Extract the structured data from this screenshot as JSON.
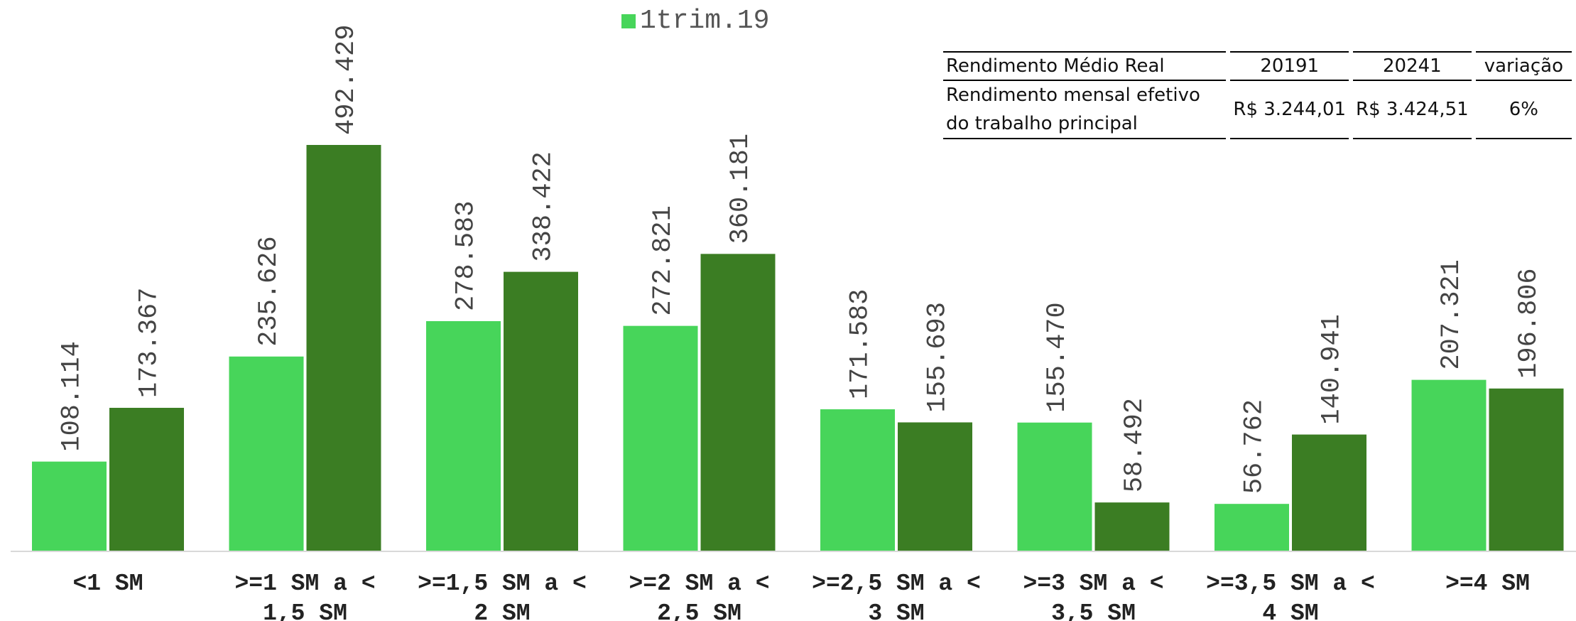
{
  "legend": {
    "label": "1trim.19"
  },
  "colors": {
    "series1": "#47d55a",
    "series2": "#3b7d23",
    "axis": "#d9d9d9",
    "label": "#444444"
  },
  "info_table": {
    "headers": [
      "Rendimento Médio Real",
      "20191",
      "20241",
      "variação"
    ],
    "row": {
      "metric": "Rendimento mensal efetivo do trabalho principal",
      "v2019": "R$ 3.244,01",
      "v2024": "R$ 3.424,51",
      "variation": "6%"
    }
  },
  "chart_data": {
    "type": "bar",
    "categories": [
      [
        "<1 SM"
      ],
      [
        ">=1 SM a <",
        "1,5 SM"
      ],
      [
        ">=1,5 SM a <",
        "2 SM"
      ],
      [
        ">=2 SM a <",
        "2,5 SM"
      ],
      [
        ">=2,5 SM a <",
        "3 SM"
      ],
      [
        ">=3 SM a <",
        "3,5 SM"
      ],
      [
        ">=3,5 SM a <",
        "4 SM"
      ],
      [
        ">=4 SM"
      ]
    ],
    "series": [
      {
        "name": "1trim.19",
        "values": [
          108114,
          235626,
          278583,
          272821,
          171583,
          155470,
          56762,
          207321
        ],
        "labels": [
          "108.114",
          "235.626",
          "278.583",
          "272.821",
          "171.583",
          "155.470",
          "56.762",
          "207.321"
        ]
      },
      {
        "values": [
          173367,
          492429,
          338422,
          360181,
          155693,
          58492,
          140941,
          196806
        ],
        "labels": [
          "173.367",
          "492.429",
          "338.422",
          "360.181",
          "155.693",
          "58.492",
          "140.941",
          "196.806"
        ]
      }
    ],
    "ylim": [
      0,
      492429
    ],
    "legend": "top-center",
    "grid": false
  }
}
